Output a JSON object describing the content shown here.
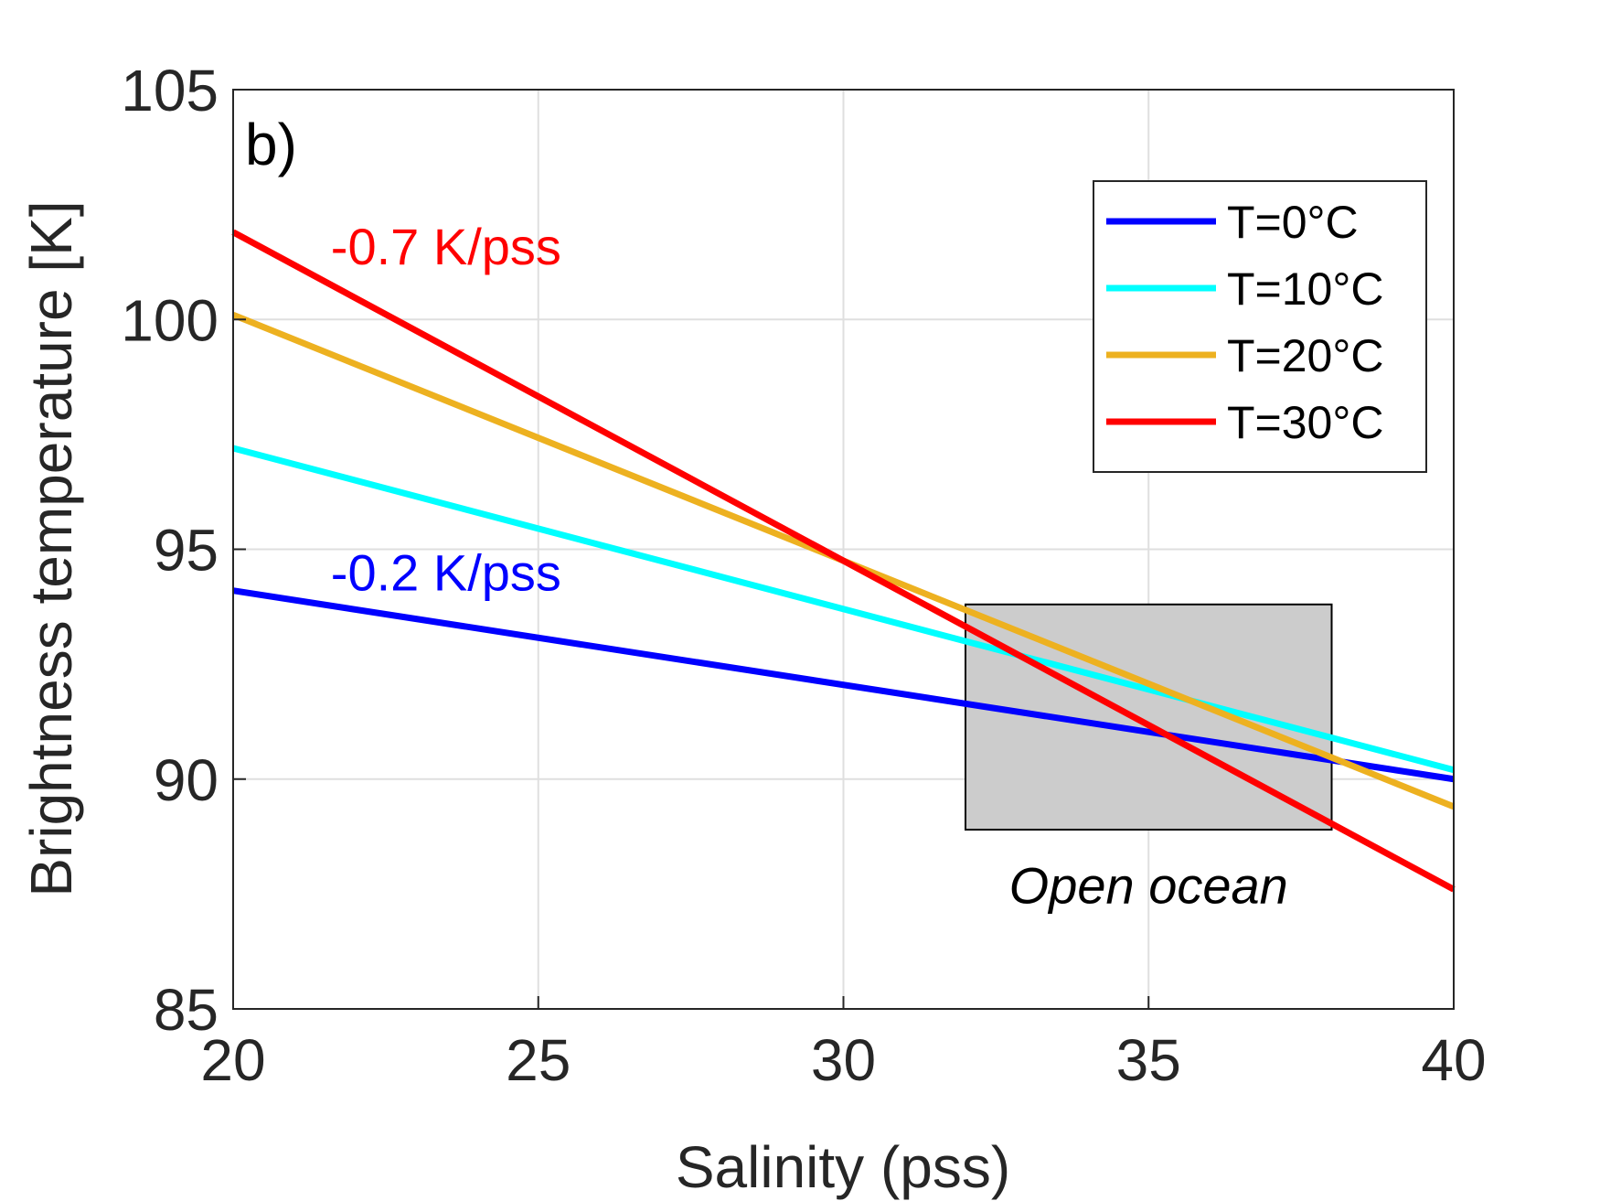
{
  "chart_data": {
    "type": "line",
    "panel_label": "b)",
    "xlabel": "Salinity (pss)",
    "ylabel": "Brightness temperature [K]",
    "xlim": [
      20,
      40
    ],
    "ylim": [
      85,
      105
    ],
    "xticks": [
      20,
      25,
      30,
      35,
      40
    ],
    "yticks": [
      85,
      90,
      95,
      100,
      105
    ],
    "grid": true,
    "legend_position": "top-right",
    "series": [
      {
        "name": "T=0°C",
        "color": "#0000ff",
        "x": [
          20,
          40
        ],
        "y": [
          94.1,
          90.0
        ]
      },
      {
        "name": "T=10°C",
        "color": "#00ffff",
        "x": [
          20,
          40
        ],
        "y": [
          97.2,
          90.2
        ]
      },
      {
        "name": "T=20°C",
        "color": "#edb120",
        "x": [
          20,
          40
        ],
        "y": [
          100.1,
          89.4
        ]
      },
      {
        "name": "T=30°C",
        "color": "#ff0000",
        "x": [
          20,
          40
        ],
        "y": [
          101.9,
          87.6
        ]
      }
    ],
    "annotations": [
      {
        "text": "-0.7 K/pss",
        "color": "#ff0000",
        "x": 21.6,
        "y": 101.2
      },
      {
        "text": "-0.2 K/pss",
        "color": "#0000ff",
        "x": 21.6,
        "y": 94.1
      },
      {
        "text": "Open ocean",
        "color": "#000000",
        "x": 35,
        "y": 87.3,
        "italic": true
      }
    ],
    "region": {
      "label_ref": "Open ocean",
      "x": [
        32,
        38
      ],
      "y": [
        88.9,
        93.8
      ],
      "color": "#cccccc"
    }
  }
}
